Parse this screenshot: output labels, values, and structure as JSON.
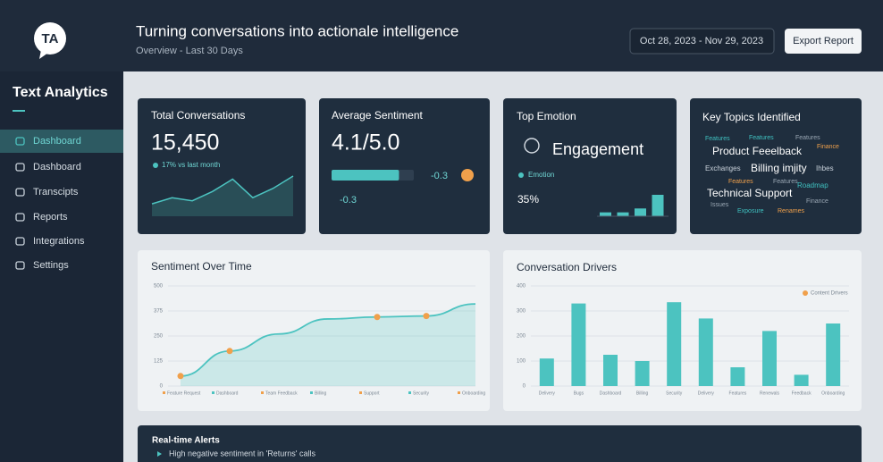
{
  "header": {
    "logo": "TA",
    "title": "Turning conversations into actionale intelligence",
    "subtitle": "Overview - Last 30 Days",
    "date_range": "Oct 28, 2023 - Nov 29, 2023",
    "export": "Export Report"
  },
  "sidebar": {
    "title": "Text Analytics",
    "nav": [
      "Dashboard",
      "Dashboard",
      "Transcipts",
      "Reports",
      "Integrations",
      "Settings"
    ]
  },
  "cards": {
    "total": {
      "title": "Total Conversations",
      "value": "15,450",
      "note": "17% vs last month",
      "sparkline": [
        2,
        3,
        2.5,
        4,
        6,
        3,
        4.5,
        6.5
      ]
    },
    "sentiment": {
      "title": "Average Sentiment",
      "value": "4.1/5.0",
      "progress": {
        "value": 4.1,
        "max": 5
      },
      "change": "-0.3",
      "change2": "-0.3"
    },
    "emotion": {
      "title": "Top Emotion",
      "value": "Engagement",
      "legend": "Emotion",
      "share": "35%",
      "bars": [
        4,
        4,
        8,
        22
      ]
    },
    "topics": {
      "title": "Key Topics Identified",
      "words": [
        {
          "text": "Features",
          "color": "#3fc1c0"
        },
        {
          "text": "Features",
          "color": "#3fc1c0"
        },
        {
          "text": "Features",
          "color": "#9aa7b4"
        },
        {
          "text": "Product Feeelback",
          "color": "#ffffff"
        },
        {
          "text": "Finance",
          "color": "#f0a04b"
        },
        {
          "text": "Exchanges",
          "color": "#c9d2db"
        },
        {
          "text": "Billing imjity",
          "color": "#ffffff"
        },
        {
          "text": "Ihbes",
          "color": "#c9d2db"
        },
        {
          "text": "Features",
          "color": "#f0a04b"
        },
        {
          "text": "Features",
          "color": "#9aa7b4"
        },
        {
          "text": "Roadmap",
          "color": "#3fc1c0"
        },
        {
          "text": "Technical Support",
          "color": "#ffffff"
        },
        {
          "text": "Finance",
          "color": "#9aa7b4"
        },
        {
          "text": "Issues",
          "color": "#9aa7b4"
        },
        {
          "text": "Exposure",
          "color": "#3fc1c0"
        },
        {
          "text": "Renames",
          "color": "#f0a04b"
        }
      ]
    }
  },
  "sentiment_chart": {
    "type": "line",
    "title": "Sentiment Over Time",
    "categories": [
      "Feature Request",
      "Dashboard",
      "Team Feedback",
      "Billing",
      "Support",
      "Security",
      "Onboarding"
    ],
    "values": [
      50,
      175,
      260,
      335,
      345,
      350,
      410
    ],
    "markers": [
      0,
      1,
      4,
      5
    ],
    "color": "#4cc3c0",
    "marker_color": "#f0a04b",
    "ylim": [
      0,
      500
    ],
    "yticks": [
      0,
      125,
      250,
      375,
      500
    ]
  },
  "drivers_chart": {
    "type": "bar",
    "title": "Conversation Drivers",
    "legend": "Content Drivers",
    "categories": [
      "Delivery",
      "Bugs",
      "Dashboard",
      "Billing",
      "Security",
      "Delivery",
      "Features",
      "Renewals",
      "Feedback",
      "Onboarding"
    ],
    "values": [
      110,
      330,
      125,
      100,
      335,
      270,
      75,
      220,
      45,
      250
    ],
    "color": "#4cc3c0",
    "legend_color": "#f0a04b",
    "ylim": [
      0,
      400
    ],
    "yticks": [
      0,
      100,
      200,
      300,
      400
    ]
  },
  "alerts": {
    "title": "Real-time Alerts",
    "items": [
      "High negative sentiment in 'Returns' calls"
    ]
  }
}
